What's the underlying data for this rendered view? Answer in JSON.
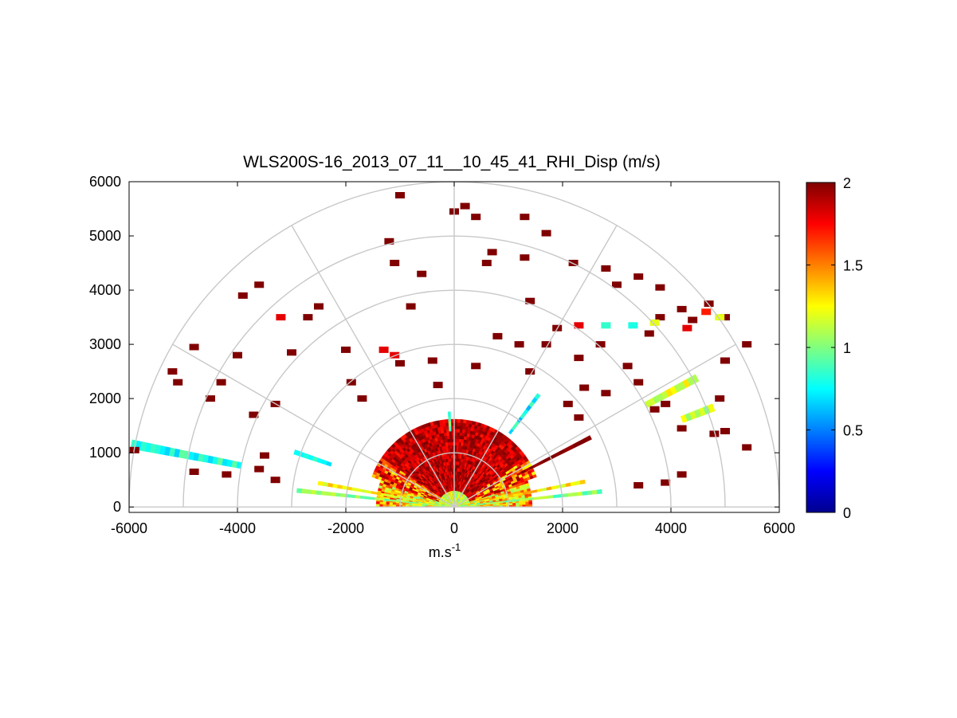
{
  "chart_data": {
    "type": "heatmap",
    "subtype": "polar-rhi-scan",
    "title": "WLS200S-16_2013_07_11__10_45_41_RHI_Disp (m/s)",
    "xlabel_base": "m.s",
    "xlabel_exponent": "-1",
    "ylabel": "",
    "xlim": [
      -6000,
      6000
    ],
    "ylim": [
      -100,
      6000
    ],
    "x_ticks": [
      -6000,
      -4000,
      -2000,
      0,
      2000,
      4000,
      6000
    ],
    "x_tick_labels": [
      "-6000",
      "-4000",
      "-2000",
      "0",
      "2000",
      "4000",
      "6000"
    ],
    "y_ticks": [
      0,
      1000,
      2000,
      3000,
      4000,
      5000,
      6000
    ],
    "y_tick_labels": [
      "0",
      "1000",
      "2000",
      "3000",
      "4000",
      "5000",
      "6000"
    ],
    "polar_grid": {
      "range_rings": [
        1000,
        2000,
        3000,
        4000,
        5000,
        6000
      ],
      "spokes_deg": [
        0,
        30,
        60,
        90,
        120,
        150,
        180
      ]
    },
    "colorbar": {
      "colormap": "jet",
      "clim": [
        0,
        2
      ],
      "ticks": [
        0,
        0.5,
        1,
        1.5,
        2
      ],
      "tick_labels": [
        "0",
        "0.5",
        "1",
        "1.5",
        "2"
      ]
    },
    "dense_region": {
      "max_range_m": 1600,
      "description_values": "high dispersion (~2 m/s) near zenith, lower (~0.8-1.3 m/s) at low elevations"
    },
    "features": [
      {
        "r_min": 400,
        "r_max": 2700,
        "angle_deg": 6,
        "value": 1.0
      },
      {
        "r_min": 400,
        "r_max": 2900,
        "angle_deg": 174,
        "value": 1.05
      },
      {
        "r_min": 300,
        "r_max": 2400,
        "angle_deg": 11,
        "value": 1.3
      },
      {
        "r_min": 300,
        "r_max": 2500,
        "angle_deg": 170,
        "value": 1.25
      },
      {
        "r_min": 1300,
        "r_max": 2800,
        "angle_deg": 27,
        "value": 2.0
      },
      {
        "r_min": 2400,
        "r_max": 3100,
        "angle_deg": 161,
        "value": 0.75
      },
      {
        "r_min": 4000,
        "r_max": 6000,
        "angle_deg": 169,
        "value": 0.8
      },
      {
        "r_min": 1700,
        "r_max": 2600,
        "angle_deg": 53,
        "value": 0.75
      },
      {
        "r_min": 4000,
        "r_max": 5000,
        "angle_deg": 28,
        "value": 1.2
      },
      {
        "r_min": 4500,
        "r_max": 5100,
        "angle_deg": 21,
        "value": 1.1
      },
      {
        "r_min": 1400,
        "r_max": 1700,
        "angle_deg": 93,
        "value": 0.9
      }
    ],
    "scatter_cells": [
      {
        "x": -1000,
        "y": 5750,
        "value": 2
      },
      {
        "x": 200,
        "y": 5550,
        "value": 2
      },
      {
        "x": 0,
        "y": 5450,
        "value": 2
      },
      {
        "x": 400,
        "y": 5350,
        "value": 2
      },
      {
        "x": 1300,
        "y": 5350,
        "value": 2
      },
      {
        "x": 1700,
        "y": 5050,
        "value": 2
      },
      {
        "x": -1200,
        "y": 4900,
        "value": 2
      },
      {
        "x": 700,
        "y": 4700,
        "value": 2
      },
      {
        "x": 600,
        "y": 4500,
        "value": 2
      },
      {
        "x": -1100,
        "y": 4500,
        "value": 2
      },
      {
        "x": -600,
        "y": 4300,
        "value": 2
      },
      {
        "x": 1300,
        "y": 4600,
        "value": 2
      },
      {
        "x": -3600,
        "y": 4100,
        "value": 2
      },
      {
        "x": -3900,
        "y": 3900,
        "value": 2
      },
      {
        "x": -2500,
        "y": 3700,
        "value": 2
      },
      {
        "x": -2700,
        "y": 3500,
        "value": 2
      },
      {
        "x": -3200,
        "y": 3500,
        "value": 1.8
      },
      {
        "x": -800,
        "y": 3700,
        "value": 2
      },
      {
        "x": 1400,
        "y": 3800,
        "value": 2
      },
      {
        "x": 2200,
        "y": 4500,
        "value": 2
      },
      {
        "x": 2800,
        "y": 4400,
        "value": 2
      },
      {
        "x": 3400,
        "y": 4250,
        "value": 2
      },
      {
        "x": 3800,
        "y": 4050,
        "value": 2
      },
      {
        "x": 3000,
        "y": 4100,
        "value": 2
      },
      {
        "x": -4800,
        "y": 2950,
        "value": 2
      },
      {
        "x": -4000,
        "y": 2800,
        "value": 2
      },
      {
        "x": -3000,
        "y": 2850,
        "value": 2
      },
      {
        "x": -5100,
        "y": 2300,
        "value": 2
      },
      {
        "x": -5200,
        "y": 2500,
        "value": 2
      },
      {
        "x": -4300,
        "y": 2300,
        "value": 2
      },
      {
        "x": -4500,
        "y": 2000,
        "value": 2
      },
      {
        "x": -3300,
        "y": 1900,
        "value": 2
      },
      {
        "x": -3700,
        "y": 1700,
        "value": 2
      },
      {
        "x": -2000,
        "y": 2900,
        "value": 2
      },
      {
        "x": -1900,
        "y": 2300,
        "value": 2
      },
      {
        "x": -1300,
        "y": 2900,
        "value": 1.8
      },
      {
        "x": -1000,
        "y": 2650,
        "value": 2
      },
      {
        "x": -1700,
        "y": 2000,
        "value": 2
      },
      {
        "x": -400,
        "y": 2700,
        "value": 2
      },
      {
        "x": -300,
        "y": 2250,
        "value": 2
      },
      {
        "x": 400,
        "y": 2600,
        "value": 2
      },
      {
        "x": 800,
        "y": 3150,
        "value": 2
      },
      {
        "x": 1200,
        "y": 3000,
        "value": 2
      },
      {
        "x": 1700,
        "y": 3000,
        "value": 2
      },
      {
        "x": 2300,
        "y": 2750,
        "value": 2
      },
      {
        "x": 2400,
        "y": 2200,
        "value": 2
      },
      {
        "x": 2800,
        "y": 2100,
        "value": 2
      },
      {
        "x": 3200,
        "y": 2600,
        "value": 2
      },
      {
        "x": 3400,
        "y": 2300,
        "value": 2
      },
      {
        "x": 3700,
        "y": 1800,
        "value": 2
      },
      {
        "x": 3900,
        "y": 1900,
        "value": 2
      },
      {
        "x": 4200,
        "y": 1450,
        "value": 2
      },
      {
        "x": 4800,
        "y": 1350,
        "value": 2
      },
      {
        "x": 5000,
        "y": 1400,
        "value": 2
      },
      {
        "x": 4900,
        "y": 2000,
        "value": 2
      },
      {
        "x": 5000,
        "y": 2700,
        "value": 2
      },
      {
        "x": 5400,
        "y": 1100,
        "value": 2
      },
      {
        "x": -5900,
        "y": 1050,
        "value": 2
      },
      {
        "x": -4800,
        "y": 650,
        "value": 2
      },
      {
        "x": -4200,
        "y": 600,
        "value": 2
      },
      {
        "x": -3600,
        "y": 700,
        "value": 2
      },
      {
        "x": -3500,
        "y": 950,
        "value": 2
      },
      {
        "x": -3300,
        "y": 500,
        "value": 2
      },
      {
        "x": 4200,
        "y": 600,
        "value": 2
      },
      {
        "x": 3900,
        "y": 450,
        "value": 2
      },
      {
        "x": 3400,
        "y": 400,
        "value": 2
      },
      {
        "x": 4700,
        "y": 3750,
        "value": 2
      },
      {
        "x": 5000,
        "y": 3500,
        "value": 2
      },
      {
        "x": 4400,
        "y": 3450,
        "value": 2
      },
      {
        "x": 4200,
        "y": 3650,
        "value": 2
      },
      {
        "x": 3600,
        "y": 3200,
        "value": 2
      },
      {
        "x": 5400,
        "y": 3000,
        "value": 2
      },
      {
        "x": 2300,
        "y": 1650,
        "value": 2
      },
      {
        "x": 2100,
        "y": 1900,
        "value": 2
      },
      {
        "x": 1400,
        "y": 2500,
        "value": 2
      },
      {
        "x": 1900,
        "y": 3300,
        "value": 2
      },
      {
        "x": 2700,
        "y": 3000,
        "value": 2
      },
      {
        "x": 3800,
        "y": 3500,
        "value": 2
      },
      {
        "x": 3700,
        "y": 3400,
        "value": 1.2
      },
      {
        "x": 3300,
        "y": 3350,
        "value": 0.8
      },
      {
        "x": 2800,
        "y": 3350,
        "value": 0.85
      },
      {
        "x": 2300,
        "y": 3350,
        "value": 1.8
      },
      {
        "x": 4650,
        "y": 3600,
        "value": 1.7
      },
      {
        "x": 4900,
        "y": 3500,
        "value": 1.2
      },
      {
        "x": 4300,
        "y": 3300,
        "value": 1.8
      },
      {
        "x": -1100,
        "y": 2800,
        "value": 1.8
      }
    ]
  }
}
